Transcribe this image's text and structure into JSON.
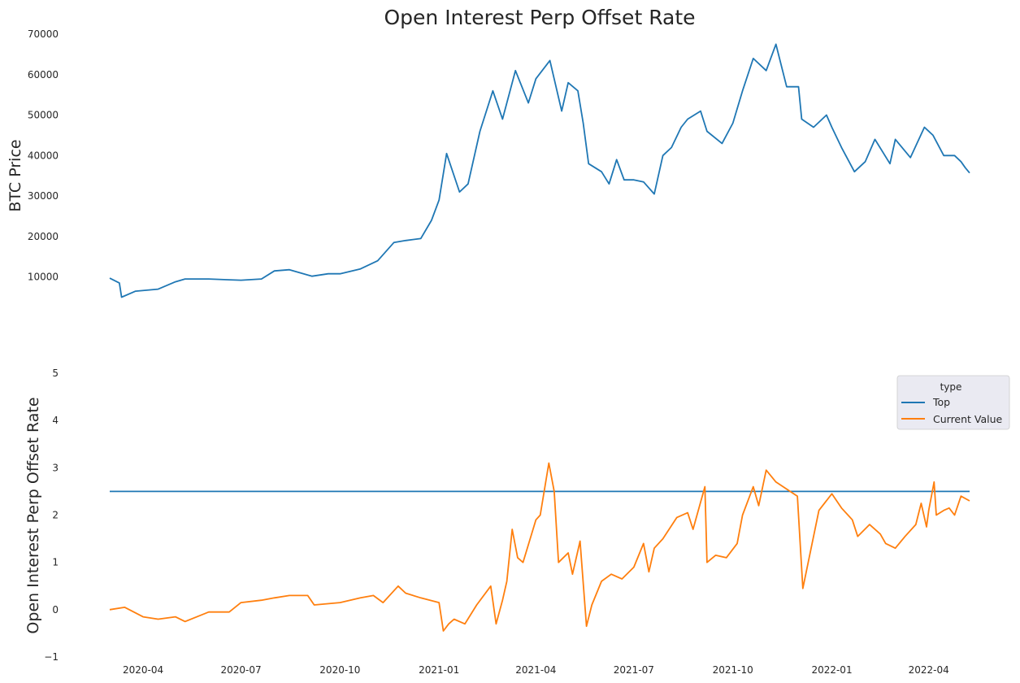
{
  "chart_data": [
    {
      "type": "line",
      "title": "Open Interest Perp Offset Rate",
      "ylabel": "BTC  Price",
      "ylim": [
        3500,
        70000
      ],
      "y_ticks": [
        "10000",
        "20000",
        "30000",
        "40000",
        "50000",
        "60000",
        "70000"
      ],
      "grid": false,
      "series": [
        {
          "color": "#1f77b4",
          "x": [
            "2020-03-01",
            "2020-03-10",
            "2020-03-12",
            "2020-03-25",
            "2020-04-15",
            "2020-05-01",
            "2020-05-10",
            "2020-06-01",
            "2020-06-20",
            "2020-07-01",
            "2020-07-20",
            "2020-08-01",
            "2020-08-15",
            "2020-09-05",
            "2020-09-20",
            "2020-10-01",
            "2020-10-20",
            "2020-11-05",
            "2020-11-20",
            "2020-12-01",
            "2020-12-15",
            "2020-12-25",
            "2021-01-01",
            "2021-01-08",
            "2021-01-20",
            "2021-01-28",
            "2021-02-08",
            "2021-02-20",
            "2021-03-01",
            "2021-03-13",
            "2021-03-25",
            "2021-04-01",
            "2021-04-14",
            "2021-04-25",
            "2021-05-01",
            "2021-05-10",
            "2021-05-15",
            "2021-05-20",
            "2021-06-01",
            "2021-06-08",
            "2021-06-15",
            "2021-06-22",
            "2021-07-01",
            "2021-07-10",
            "2021-07-20",
            "2021-07-28",
            "2021-08-05",
            "2021-08-14",
            "2021-08-20",
            "2021-09-01",
            "2021-09-07",
            "2021-09-21",
            "2021-10-01",
            "2021-10-10",
            "2021-10-20",
            "2021-11-01",
            "2021-11-10",
            "2021-11-20",
            "2021-12-01",
            "2021-12-04",
            "2021-12-15",
            "2021-12-27",
            "2022-01-01",
            "2022-01-10",
            "2022-01-22",
            "2022-02-01",
            "2022-02-10",
            "2022-02-24",
            "2022-03-01",
            "2022-03-15",
            "2022-03-28",
            "2022-04-05",
            "2022-04-15",
            "2022-04-25",
            "2022-05-01",
            "2022-05-05",
            "2022-05-09"
          ],
          "y": [
            9700,
            8500,
            5000,
            6500,
            7000,
            8800,
            9500,
            9500,
            9300,
            9200,
            9500,
            11500,
            11800,
            10200,
            10800,
            10800,
            12000,
            14000,
            18500,
            19000,
            19500,
            24000,
            29000,
            40500,
            31000,
            33000,
            46000,
            56000,
            49000,
            61000,
            53000,
            59000,
            63500,
            51000,
            58000,
            56000,
            48000,
            38000,
            36000,
            33000,
            39000,
            34000,
            34000,
            33500,
            30500,
            40000,
            42000,
            47000,
            49000,
            51000,
            46000,
            43000,
            48000,
            56000,
            64000,
            61000,
            67500,
            57000,
            57000,
            49000,
            47000,
            50000,
            47000,
            42000,
            36000,
            38500,
            44000,
            38000,
            44000,
            39500,
            47000,
            45000,
            40000,
            40000,
            38500,
            37000,
            35700
          ]
        }
      ]
    },
    {
      "type": "line",
      "ylabel": "Open Interest Perp Offset Rate",
      "ylim": [
        -1,
        5
      ],
      "y_ticks": [
        "−1",
        "0",
        "1",
        "2",
        "3",
        "4",
        "5"
      ],
      "x_ticks": [
        "2020-04",
        "2020-07",
        "2020-10",
        "2021-01",
        "2021-04",
        "2021-07",
        "2021-10",
        "2022-01",
        "2022-04"
      ],
      "grid": false,
      "legend": {
        "title": "type",
        "position": "upper-right"
      },
      "series": [
        {
          "name": "Top",
          "color": "#1f77b4",
          "x": [
            "2020-03-01",
            "2022-05-09"
          ],
          "y": [
            2.5,
            2.5
          ]
        },
        {
          "name": "Current Value",
          "color": "#ff7f0e",
          "x": [
            "2020-03-01",
            "2020-03-15",
            "2020-04-01",
            "2020-04-15",
            "2020-05-01",
            "2020-05-10",
            "2020-06-01",
            "2020-06-20",
            "2020-07-01",
            "2020-07-20",
            "2020-08-01",
            "2020-08-15",
            "2020-09-01",
            "2020-09-07",
            "2020-10-01",
            "2020-10-20",
            "2020-11-01",
            "2020-11-10",
            "2020-11-24",
            "2020-12-01",
            "2020-12-15",
            "2021-01-01",
            "2021-01-05",
            "2021-01-10",
            "2021-01-15",
            "2021-01-25",
            "2021-02-05",
            "2021-02-18",
            "2021-02-23",
            "2021-03-01",
            "2021-03-05",
            "2021-03-10",
            "2021-03-15",
            "2021-03-20",
            "2021-04-01",
            "2021-04-05",
            "2021-04-13",
            "2021-04-18",
            "2021-04-22",
            "2021-05-01",
            "2021-05-05",
            "2021-05-12",
            "2021-05-18",
            "2021-05-23",
            "2021-06-01",
            "2021-06-10",
            "2021-06-20",
            "2021-07-01",
            "2021-07-10",
            "2021-07-15",
            "2021-07-20",
            "2021-07-28",
            "2021-08-10",
            "2021-08-20",
            "2021-08-25",
            "2021-09-05",
            "2021-09-07",
            "2021-09-15",
            "2021-09-25",
            "2021-10-05",
            "2021-10-10",
            "2021-10-20",
            "2021-10-25",
            "2021-11-01",
            "2021-11-10",
            "2021-11-20",
            "2021-11-30",
            "2021-12-05",
            "2021-12-10",
            "2021-12-20",
            "2022-01-01",
            "2022-01-10",
            "2022-01-20",
            "2022-01-25",
            "2022-02-05",
            "2022-02-15",
            "2022-02-20",
            "2022-03-01",
            "2022-03-10",
            "2022-03-20",
            "2022-03-25",
            "2022-03-30",
            "2022-04-01",
            "2022-04-06",
            "2022-04-08",
            "2022-04-15",
            "2022-04-20",
            "2022-04-25",
            "2022-05-01",
            "2022-05-09"
          ],
          "y": [
            0.0,
            0.05,
            -0.15,
            -0.2,
            -0.15,
            -0.25,
            -0.05,
            -0.05,
            0.15,
            0.2,
            0.25,
            0.3,
            0.3,
            0.1,
            0.15,
            0.25,
            0.3,
            0.15,
            0.5,
            0.35,
            0.25,
            0.15,
            -0.45,
            -0.3,
            -0.2,
            -0.3,
            0.1,
            0.5,
            -0.3,
            0.2,
            0.6,
            1.7,
            1.1,
            1.0,
            1.9,
            2.0,
            3.1,
            2.5,
            1.0,
            1.2,
            0.75,
            1.45,
            -0.35,
            0.1,
            0.6,
            0.75,
            0.65,
            0.9,
            1.4,
            0.8,
            1.3,
            1.5,
            1.95,
            2.05,
            1.7,
            2.6,
            1.0,
            1.15,
            1.1,
            1.4,
            2.0,
            2.6,
            2.2,
            2.95,
            2.7,
            2.55,
            2.4,
            0.45,
            1.0,
            2.1,
            2.45,
            2.15,
            1.9,
            1.55,
            1.8,
            1.6,
            1.4,
            1.3,
            1.55,
            1.8,
            2.25,
            1.75,
            2.1,
            2.7,
            2.0,
            2.1,
            2.15,
            2.0,
            2.4,
            2.3
          ]
        }
      ]
    }
  ]
}
